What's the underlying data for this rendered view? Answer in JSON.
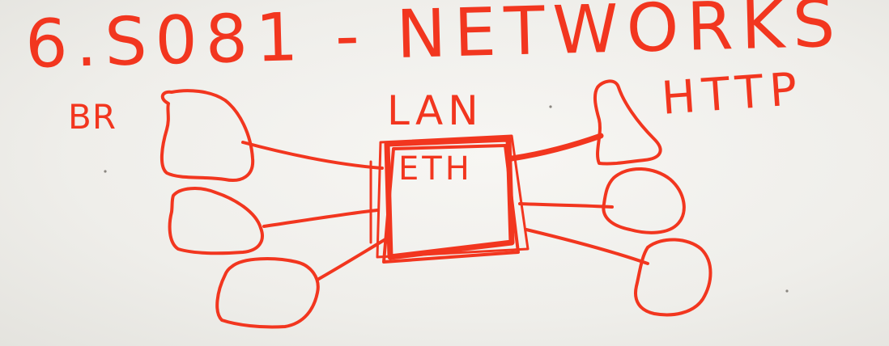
{
  "diagram": {
    "title": "6.S081 - NETWORKS",
    "left_label": "BR",
    "top_label": "LAN",
    "right_label": "HTTP",
    "center_label": "ETH",
    "ink_color": "#f2361f",
    "background_color": "#f2f1ee"
  }
}
